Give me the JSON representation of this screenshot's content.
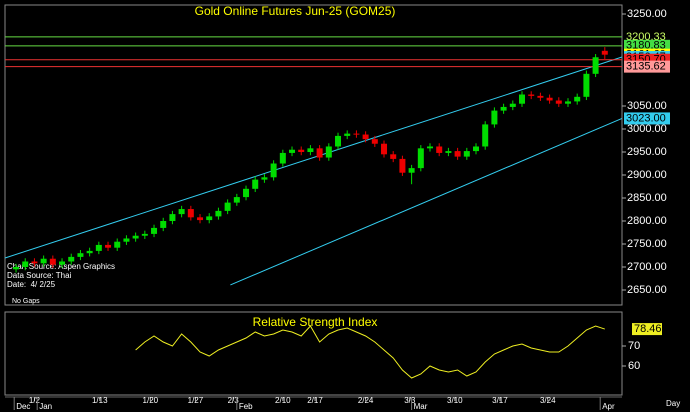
{
  "chart_data": [
    {
      "type": "candlestick",
      "title": "Gold Online Futures Jun-25 (GOM25)",
      "up_color": "#00dd00",
      "down_color": "#ee0000",
      "label_color": "#ffff00",
      "open": [
        2695,
        2700,
        2712,
        2708,
        2718,
        2705,
        2712,
        2722,
        2730,
        2735,
        2748,
        2742,
        2755,
        2762,
        2768,
        2772,
        2785,
        2800,
        2815,
        2826,
        2808,
        2802,
        2810,
        2822,
        2840,
        2852,
        2870,
        2890,
        2895,
        2925,
        2948,
        2955,
        2950,
        2958,
        2938,
        2962,
        2985,
        2990,
        2988,
        2978,
        2968,
        2945,
        2935,
        2905,
        2915,
        2958,
        2962,
        2948,
        2952,
        2940,
        2952,
        2962,
        3010,
        3040,
        3048,
        3055,
        3075,
        3072,
        3068,
        3062,
        3055,
        3060,
        3070,
        3120,
        3170
      ],
      "high": [
        2707,
        2719,
        2719,
        2725,
        2725,
        2719,
        2729,
        2737,
        2742,
        2755,
        2755,
        2762,
        2769,
        2775,
        2779,
        2792,
        2807,
        2822,
        2833,
        2833,
        2815,
        2817,
        2829,
        2847,
        2859,
        2877,
        2897,
        2902,
        2932,
        2955,
        2962,
        2962,
        2965,
        2965,
        2969,
        2992,
        2997,
        2997,
        2995,
        2985,
        2975,
        2952,
        2942,
        2922,
        2965,
        2969,
        2969,
        2959,
        2959,
        2959,
        2969,
        3017,
        3047,
        3055,
        3062,
        3082,
        3082,
        3079,
        3075,
        3069,
        3067,
        3077,
        3127,
        3163,
        3178
      ],
      "low": [
        2688,
        2693,
        2701,
        2701,
        2698,
        2698,
        2705,
        2715,
        2723,
        2728,
        2735,
        2735,
        2748,
        2755,
        2761,
        2765,
        2778,
        2793,
        2808,
        2801,
        2795,
        2795,
        2803,
        2815,
        2833,
        2845,
        2863,
        2883,
        2888,
        2918,
        2941,
        2943,
        2943,
        2931,
        2931,
        2955,
        2978,
        2981,
        2971,
        2961,
        2938,
        2928,
        2898,
        2880,
        2908,
        2951,
        2941,
        2941,
        2933,
        2933,
        2945,
        2955,
        3003,
        3033,
        3041,
        3048,
        3065,
        3061,
        3055,
        3048,
        3048,
        3053,
        3063,
        3113,
        3150
      ],
      "close": [
        2700,
        2712,
        2708,
        2718,
        2705,
        2712,
        2722,
        2730,
        2735,
        2748,
        2742,
        2755,
        2762,
        2768,
        2772,
        2785,
        2800,
        2815,
        2826,
        2808,
        2802,
        2810,
        2822,
        2840,
        2852,
        2870,
        2890,
        2895,
        2925,
        2948,
        2955,
        2950,
        2958,
        2938,
        2962,
        2985,
        2990,
        2988,
        2978,
        2968,
        2945,
        2935,
        2905,
        2915,
        2958,
        2962,
        2948,
        2952,
        2940,
        2952,
        2962,
        3010,
        3040,
        3048,
        3055,
        3075,
        3072,
        3068,
        3062,
        3055,
        3060,
        3070,
        3120,
        3156,
        3161.6
      ],
      "xlim": [
        -1.2,
        65.87
      ],
      "ylim": [
        2617.4,
        3269.6
      ],
      "yticks": [
        {
          "value": 2650,
          "label": "2650.00"
        },
        {
          "value": 2700,
          "label": "2700.00"
        },
        {
          "value": 2750,
          "label": "2750.00"
        },
        {
          "value": 2800,
          "label": "2800.00"
        },
        {
          "value": 2850,
          "label": "2850.00"
        },
        {
          "value": 2900,
          "label": "2900.00"
        },
        {
          "value": 2950,
          "label": "2950.00"
        },
        {
          "value": 3000,
          "label": "3000.00"
        },
        {
          "value": 3050,
          "label": "3050.00"
        },
        {
          "value": 3250,
          "label": "3250.00"
        }
      ],
      "xticks": [
        {
          "value": 2,
          "label": "1/2"
        },
        {
          "value": 9.1,
          "label": "1/13"
        },
        {
          "value": 14.6,
          "label": "1/20"
        },
        {
          "value": 19.5,
          "label": "1/27"
        },
        {
          "value": 23.6,
          "label": "2/3"
        },
        {
          "value": 29,
          "label": "2/10"
        },
        {
          "value": 32.5,
          "label": "2/17"
        },
        {
          "value": 38,
          "label": "2/24"
        },
        {
          "value": 42.8,
          "label": "3/3"
        },
        {
          "value": 47.7,
          "label": "3/10"
        },
        {
          "value": 52.6,
          "label": "3/17"
        },
        {
          "value": 57.8,
          "label": "3/24"
        }
      ],
      "months": [
        {
          "value": -0.2,
          "label": "Dec"
        },
        {
          "value": 2.3,
          "label": "Jan"
        },
        {
          "value": 24,
          "label": "Feb"
        },
        {
          "value": 43,
          "label": "Mar"
        },
        {
          "value": 63.5,
          "label": "Apr"
        }
      ],
      "channel_color": "#33ccee",
      "channels": [
        {
          "x": [
            -1.2,
            65.87
          ],
          "y": [
            2719.6,
            3156.47
          ]
        },
        {
          "x": [
            23.3,
            65.87
          ],
          "y": [
            2661,
            3023
          ]
        }
      ],
      "price_labels": [
        {
          "value": 3200.33,
          "color": "#000000",
          "text_color": "#ccff66",
          "line": "#66dd44"
        },
        {
          "value": 3180.83,
          "color": "#44dd44",
          "text_color": "#000000",
          "line": "#66dd44"
        },
        {
          "value": 3161.6,
          "label": "3161.60",
          "color": "#ffff00",
          "text_color": "#000000"
        },
        {
          "value": 3156.47,
          "color": "#33ccee",
          "text_color": "#000000"
        },
        {
          "value": 3150.7,
          "label": "3150.70",
          "color": "#ee2222",
          "text_color": "#000000",
          "line": "#ee3333"
        },
        {
          "value": 3135.62,
          "color": "#ff9999",
          "text_color": "#000000",
          "line": "#ee3333"
        },
        {
          "value": 3023,
          "label": "3023.00",
          "color": "#33ccee",
          "text_color": "#000000"
        }
      ],
      "notes": [
        "Chart Source: Aspen Graphics",
        "Data Source: Thai",
        "Date:  4/ 2/25"
      ],
      "footnote": "No Gaps",
      "period": "Day"
    },
    {
      "type": "line",
      "title": "Relative Strength Index",
      "color": "#eeee22",
      "values": [
        null,
        null,
        null,
        null,
        null,
        null,
        null,
        null,
        null,
        null,
        null,
        null,
        null,
        68,
        72,
        75,
        72,
        70,
        76,
        72,
        67,
        65,
        68,
        70,
        72,
        74,
        77,
        75,
        76,
        78,
        77,
        75,
        80,
        72,
        76,
        78,
        79,
        77,
        75,
        72,
        68,
        64,
        58,
        54,
        56,
        60,
        58,
        57,
        58,
        55,
        57,
        62,
        66,
        68,
        70,
        71,
        69,
        68,
        67,
        67,
        70,
        74,
        78,
        80,
        78.46
      ],
      "xlim": [
        -1.2,
        65.87
      ],
      "ylim": [
        45.5,
        87
      ],
      "yticks": [
        60,
        70
      ],
      "last": 78.46
    }
  ]
}
